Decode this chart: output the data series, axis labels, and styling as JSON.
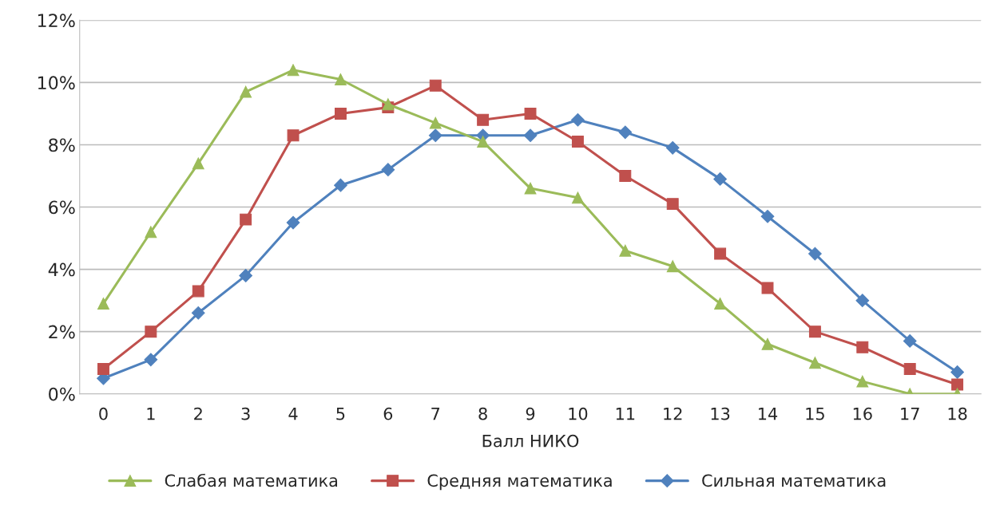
{
  "chart_data": {
    "type": "line",
    "xlabel": "Балл НИКО",
    "categories": [
      "0",
      "1",
      "2",
      "3",
      "4",
      "5",
      "6",
      "7",
      "8",
      "9",
      "10",
      "11",
      "12",
      "13",
      "14",
      "15",
      "16",
      "17",
      "18"
    ],
    "series": [
      {
        "name": "Слабая математика",
        "color": "#9bbb59",
        "marker": "triangle",
        "values": [
          2.9,
          5.2,
          7.4,
          9.7,
          10.4,
          10.1,
          9.3,
          8.7,
          8.1,
          6.6,
          6.3,
          4.6,
          4.1,
          2.9,
          1.6,
          1.0,
          0.4,
          0.0,
          0.0
        ]
      },
      {
        "name": "Средняя математика",
        "color": "#c0504d",
        "marker": "square",
        "values": [
          0.8,
          2.0,
          3.3,
          5.6,
          8.3,
          9.0,
          9.2,
          9.9,
          8.8,
          9.0,
          8.1,
          7.0,
          6.1,
          4.5,
          3.4,
          2.0,
          1.5,
          0.8,
          0.3
        ]
      },
      {
        "name": "Сильная математика",
        "color": "#4f81bd",
        "marker": "diamond",
        "values": [
          0.5,
          1.1,
          2.6,
          3.8,
          5.5,
          6.7,
          7.2,
          8.3,
          8.3,
          8.3,
          8.8,
          8.4,
          7.9,
          6.9,
          5.7,
          4.5,
          3.0,
          1.7,
          0.7
        ]
      }
    ],
    "ylim": [
      0,
      12
    ],
    "yticks": [
      {
        "value": 0,
        "label": "0%"
      },
      {
        "value": 2,
        "label": "2%"
      },
      {
        "value": 4,
        "label": "4%"
      },
      {
        "value": 6,
        "label": "6%"
      },
      {
        "value": 8,
        "label": "8%"
      },
      {
        "value": 10,
        "label": "10%"
      },
      {
        "value": 12,
        "label": "12%"
      }
    ],
    "grid": "y",
    "legend": "bottom",
    "line_style": "solid"
  }
}
